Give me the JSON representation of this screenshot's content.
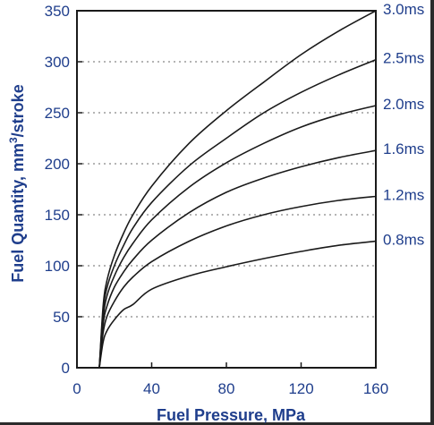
{
  "chart_data": {
    "type": "line",
    "title": "",
    "xlabel": "Fuel Pressure, MPa",
    "ylabel_parts": {
      "prefix": "Fuel Quantity, mm",
      "sup": "3",
      "suffix": "/stroke"
    },
    "xlim": [
      0,
      160
    ],
    "ylim": [
      0,
      350
    ],
    "xticks": [
      0,
      40,
      80,
      120,
      160
    ],
    "yticks": [
      0,
      50,
      100,
      150,
      200,
      250,
      300,
      350
    ],
    "grid": "dotted horizontal",
    "legend": "line-end labels on right",
    "series": [
      {
        "name": "3.0ms",
        "x": [
          12,
          14,
          16,
          20,
          25,
          30,
          40,
          60,
          80,
          100,
          120,
          140,
          160
        ],
        "y": [
          0,
          60,
          85,
          110,
          132,
          150,
          178,
          220,
          252,
          280,
          307,
          330,
          350
        ]
      },
      {
        "name": "2.5ms",
        "x": [
          12,
          14,
          16,
          20,
          25,
          30,
          40,
          60,
          80,
          100,
          120,
          140,
          160
        ],
        "y": [
          0,
          55,
          78,
          100,
          120,
          137,
          162,
          198,
          225,
          250,
          270,
          287,
          302
        ]
      },
      {
        "name": "2.0ms",
        "x": [
          12,
          14,
          16,
          20,
          25,
          30,
          40,
          60,
          80,
          100,
          120,
          140,
          160
        ],
        "y": [
          0,
          48,
          70,
          90,
          108,
          122,
          145,
          177,
          201,
          220,
          236,
          248,
          257
        ]
      },
      {
        "name": "1.6ms",
        "x": [
          12,
          14,
          16,
          20,
          25,
          30,
          40,
          60,
          80,
          100,
          120,
          140,
          160
        ],
        "y": [
          0,
          42,
          60,
          79,
          94,
          106,
          125,
          152,
          172,
          186,
          197,
          206,
          213
        ]
      },
      {
        "name": "1.2ms",
        "x": [
          12,
          14,
          16,
          20,
          25,
          30,
          40,
          60,
          80,
          100,
          120,
          140,
          160
        ],
        "y": [
          0,
          34,
          50,
          65,
          79,
          89,
          104,
          124,
          139,
          150,
          158,
          164,
          168
        ]
      },
      {
        "name": "0.8ms",
        "x": [
          12,
          14,
          16,
          20,
          25,
          30,
          40,
          60,
          80,
          100,
          120,
          140,
          160
        ],
        "y": [
          0,
          25,
          36,
          47,
          57,
          62,
          77,
          90,
          99,
          107,
          114,
          120,
          124
        ]
      }
    ]
  },
  "colors": {
    "text": "#1f3e8c",
    "line": "#1a1a1a",
    "grid": "#6a6a6a"
  }
}
